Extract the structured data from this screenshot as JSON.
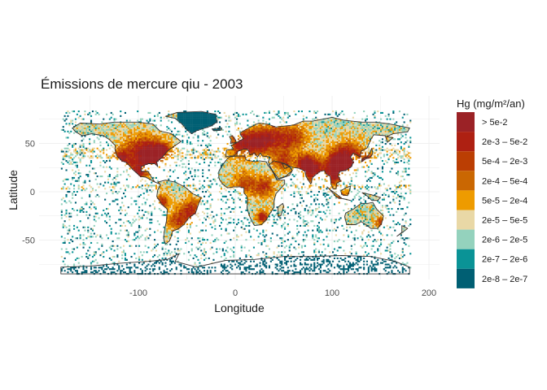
{
  "map": {
    "title": "Émissions de mercure qiu - 2003",
    "x_axis": {
      "label": "Longitude",
      "ticks": [
        -100,
        0,
        100,
        200
      ],
      "tick_labels": [
        "-100",
        "0",
        "100",
        "200"
      ],
      "range": [
        -180,
        180
      ]
    },
    "y_axis": {
      "label": "Latitude",
      "ticks": [
        -50,
        0,
        50
      ],
      "tick_labels": [
        "-50",
        "0",
        "50"
      ],
      "range": [
        -85,
        84
      ]
    },
    "legend": {
      "title": "Hg (mg/m²/an)",
      "placement": "right",
      "classes": [
        {
          "label": "> 5e-2",
          "color": "#9b2226"
        },
        {
          "label": "2e-3 – 5e-2",
          "color": "#ae2012"
        },
        {
          "label": "5e-4 – 2e-3",
          "color": "#bb3e03"
        },
        {
          "label": "2e-4 – 5e-4",
          "color": "#ca6702"
        },
        {
          "label": "5e-5 – 2e-4",
          "color": "#ee9b00"
        },
        {
          "label": "2e-5 – 5e-5",
          "color": "#e9d8a6"
        },
        {
          "label": "2e-6 – 2e-5",
          "color": "#94d2bd"
        },
        {
          "label": "2e-7 – 2e-6",
          "color": "#0a9396"
        },
        {
          "label": "2e-8 – 2e-7",
          "color": "#005f73"
        }
      ]
    },
    "grid": true,
    "background": "#ffffff",
    "border_color": "#333333"
  }
}
